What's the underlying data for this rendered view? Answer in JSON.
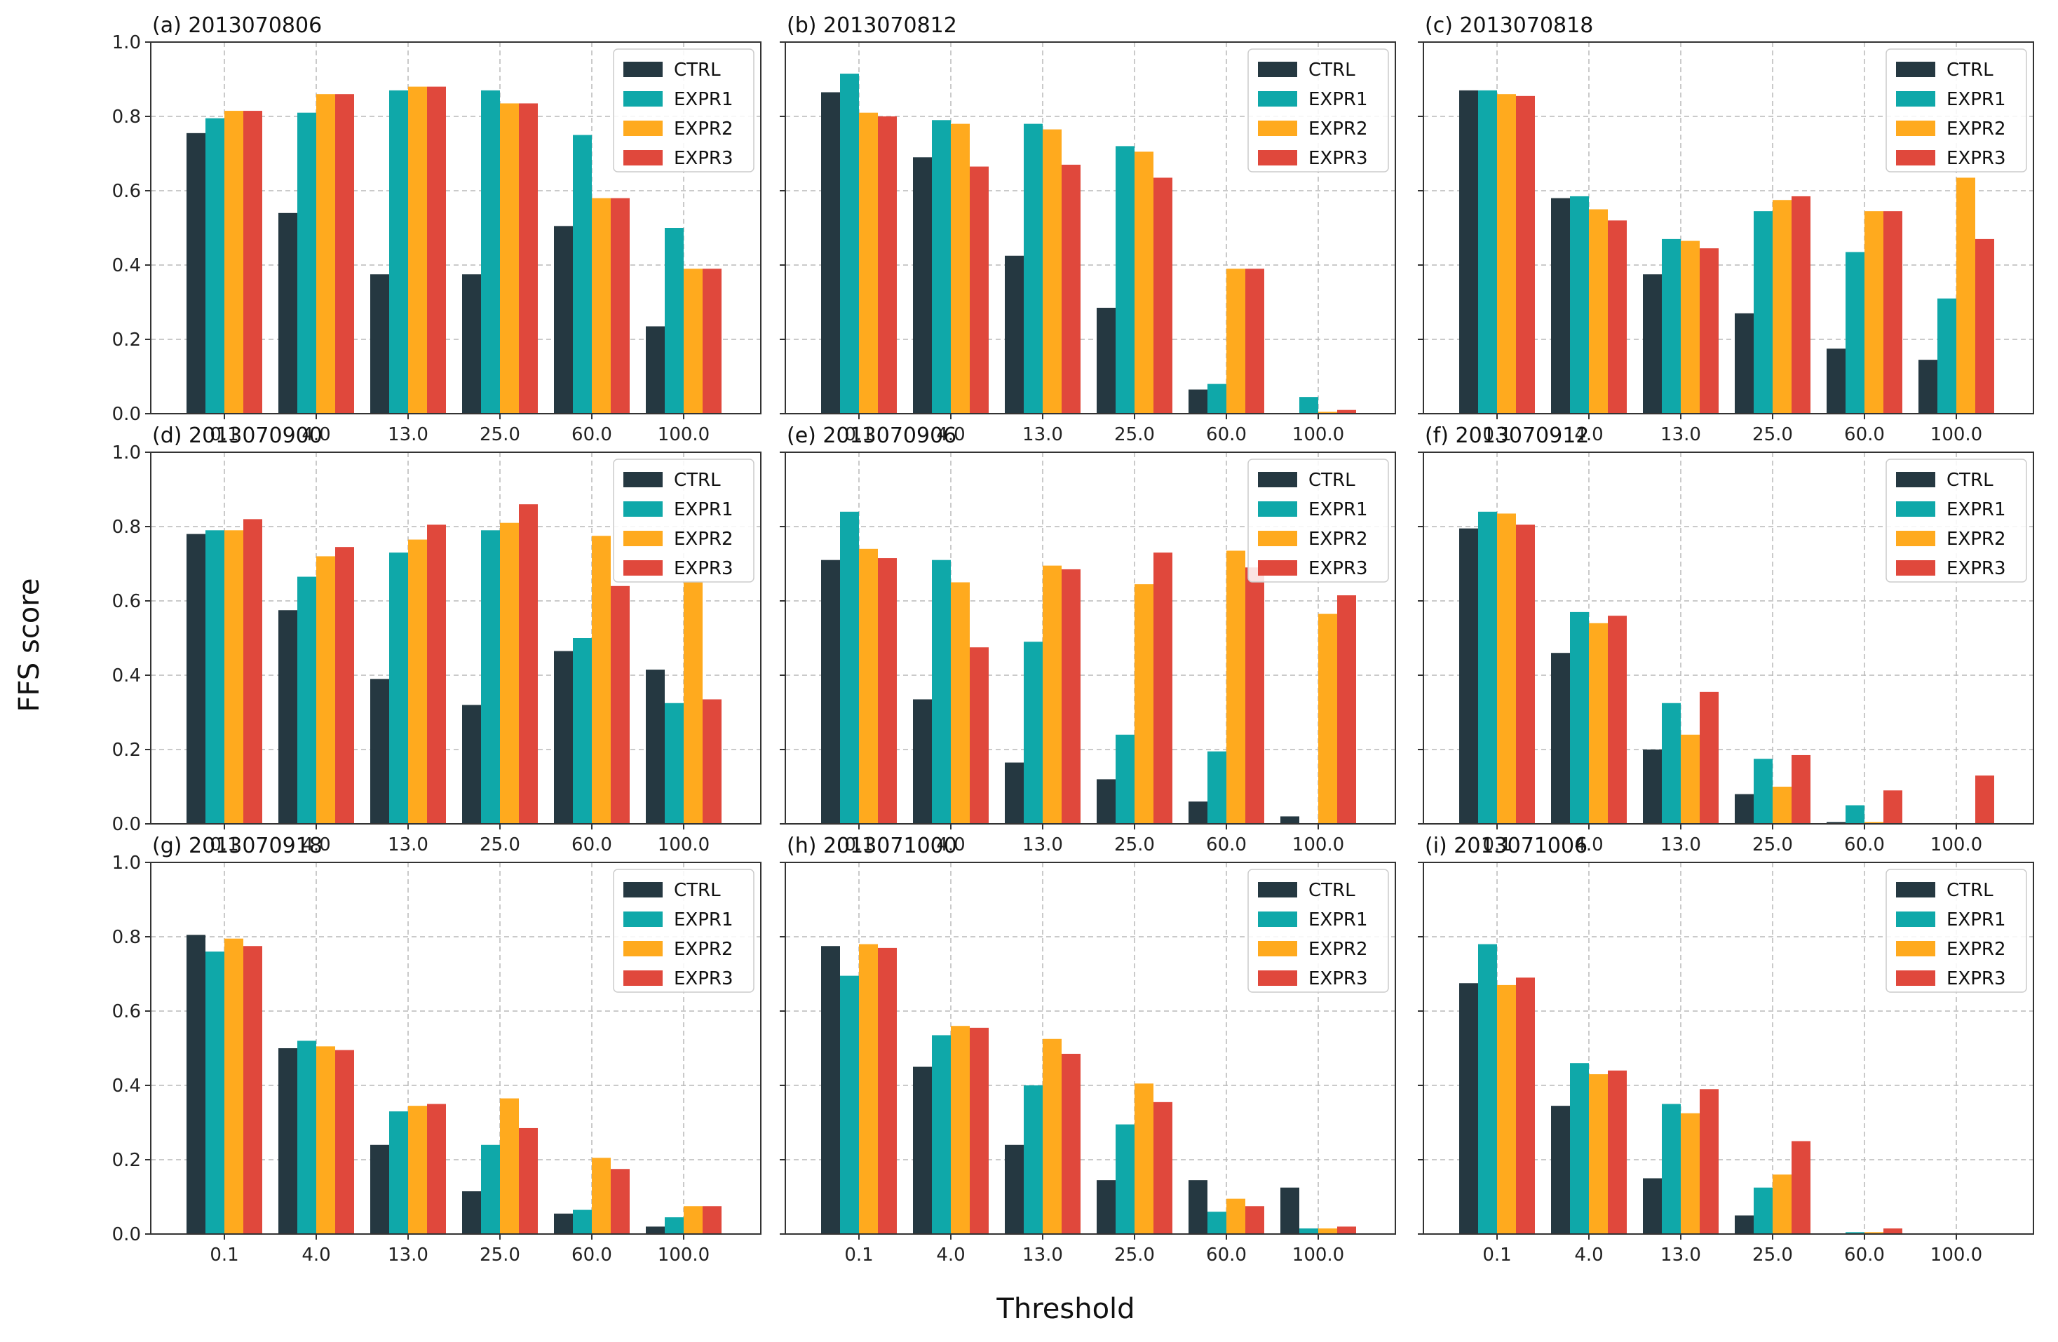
{
  "figure": {
    "ylabel": "FFS score",
    "xlabel": "Threshold",
    "colors": {
      "CTRL": "#253841",
      "EXPR1": "#0FA8A9",
      "EXPR2": "#FFAA1E",
      "EXPR3": "#E0483C"
    }
  },
  "chart_data": [
    {
      "type": "bar",
      "title": "(a) 2013070806",
      "categories": [
        "0.1",
        "4.0",
        "13.0",
        "25.0",
        "60.0",
        "100.0"
      ],
      "ylim": [
        0,
        1.0
      ],
      "yticks": [
        "0.0",
        "0.2",
        "0.4",
        "0.6",
        "0.8",
        "1.0"
      ],
      "grid": true,
      "legend": "top-right",
      "series": [
        {
          "name": "CTRL",
          "values": [
            0.755,
            0.54,
            0.375,
            0.375,
            0.505,
            0.235
          ]
        },
        {
          "name": "EXPR1",
          "values": [
            0.795,
            0.81,
            0.87,
            0.87,
            0.75,
            0.5
          ]
        },
        {
          "name": "EXPR2",
          "values": [
            0.815,
            0.86,
            0.88,
            0.835,
            0.58,
            0.39
          ]
        },
        {
          "name": "EXPR3",
          "values": [
            0.815,
            0.86,
            0.88,
            0.835,
            0.58,
            0.39
          ]
        }
      ]
    },
    {
      "type": "bar",
      "title": "(b) 2013070812",
      "categories": [
        "0.1",
        "4.0",
        "13.0",
        "25.0",
        "60.0",
        "100.0"
      ],
      "ylim": [
        0,
        1.0
      ],
      "yticks": [
        "0.0",
        "0.2",
        "0.4",
        "0.6",
        "0.8",
        "1.0"
      ],
      "grid": true,
      "legend": "top-right",
      "series": [
        {
          "name": "CTRL",
          "values": [
            0.865,
            0.69,
            0.425,
            0.285,
            0.065,
            0.0
          ]
        },
        {
          "name": "EXPR1",
          "values": [
            0.915,
            0.79,
            0.78,
            0.72,
            0.08,
            0.045
          ]
        },
        {
          "name": "EXPR2",
          "values": [
            0.81,
            0.78,
            0.765,
            0.705,
            0.39,
            0.005
          ]
        },
        {
          "name": "EXPR3",
          "values": [
            0.8,
            0.665,
            0.67,
            0.635,
            0.39,
            0.01
          ]
        }
      ]
    },
    {
      "type": "bar",
      "title": "(c) 2013070818",
      "categories": [
        "0.1",
        "4.0",
        "13.0",
        "25.0",
        "60.0",
        "100.0"
      ],
      "ylim": [
        0,
        1.0
      ],
      "yticks": [
        "0.0",
        "0.2",
        "0.4",
        "0.6",
        "0.8",
        "1.0"
      ],
      "grid": true,
      "legend": "top-right",
      "series": [
        {
          "name": "CTRL",
          "values": [
            0.87,
            0.58,
            0.375,
            0.27,
            0.175,
            0.145
          ]
        },
        {
          "name": "EXPR1",
          "values": [
            0.87,
            0.585,
            0.47,
            0.545,
            0.435,
            0.31
          ]
        },
        {
          "name": "EXPR2",
          "values": [
            0.86,
            0.55,
            0.465,
            0.575,
            0.545,
            0.635
          ]
        },
        {
          "name": "EXPR3",
          "values": [
            0.855,
            0.52,
            0.445,
            0.585,
            0.545,
            0.47
          ]
        }
      ]
    },
    {
      "type": "bar",
      "title": "(d) 2013070900",
      "categories": [
        "0.1",
        "4.0",
        "13.0",
        "25.0",
        "60.0",
        "100.0"
      ],
      "ylim": [
        0,
        1.0
      ],
      "yticks": [
        "0.0",
        "0.2",
        "0.4",
        "0.6",
        "0.8",
        "1.0"
      ],
      "grid": true,
      "legend": "top-right",
      "series": [
        {
          "name": "CTRL",
          "values": [
            0.78,
            0.575,
            0.39,
            0.32,
            0.465,
            0.415
          ]
        },
        {
          "name": "EXPR1",
          "values": [
            0.79,
            0.665,
            0.73,
            0.79,
            0.5,
            0.325
          ]
        },
        {
          "name": "EXPR2",
          "values": [
            0.79,
            0.72,
            0.765,
            0.81,
            0.775,
            0.65
          ]
        },
        {
          "name": "EXPR3",
          "values": [
            0.82,
            0.745,
            0.805,
            0.86,
            0.64,
            0.335
          ]
        }
      ]
    },
    {
      "type": "bar",
      "title": "(e) 2013070906",
      "categories": [
        "0.1",
        "4.0",
        "13.0",
        "25.0",
        "60.0",
        "100.0"
      ],
      "ylim": [
        0,
        1.0
      ],
      "yticks": [
        "0.0",
        "0.2",
        "0.4",
        "0.6",
        "0.8",
        "1.0"
      ],
      "grid": true,
      "legend": "top-right",
      "series": [
        {
          "name": "CTRL",
          "values": [
            0.71,
            0.335,
            0.165,
            0.12,
            0.06,
            0.02
          ]
        },
        {
          "name": "EXPR1",
          "values": [
            0.84,
            0.71,
            0.49,
            0.24,
            0.195,
            0.0
          ]
        },
        {
          "name": "EXPR2",
          "values": [
            0.74,
            0.65,
            0.695,
            0.645,
            0.735,
            0.565
          ]
        },
        {
          "name": "EXPR3",
          "values": [
            0.715,
            0.475,
            0.685,
            0.73,
            0.69,
            0.615
          ]
        }
      ]
    },
    {
      "type": "bar",
      "title": "(f) 2013070912",
      "categories": [
        "0.1",
        "4.0",
        "13.0",
        "25.0",
        "60.0",
        "100.0"
      ],
      "ylim": [
        0,
        1.0
      ],
      "yticks": [
        "0.0",
        "0.2",
        "0.4",
        "0.6",
        "0.8",
        "1.0"
      ],
      "grid": true,
      "legend": "top-right",
      "series": [
        {
          "name": "CTRL",
          "values": [
            0.795,
            0.46,
            0.2,
            0.08,
            0.005,
            0.0
          ]
        },
        {
          "name": "EXPR1",
          "values": [
            0.84,
            0.57,
            0.325,
            0.175,
            0.05,
            0.0
          ]
        },
        {
          "name": "EXPR2",
          "values": [
            0.835,
            0.54,
            0.24,
            0.1,
            0.005,
            0.0
          ]
        },
        {
          "name": "EXPR3",
          "values": [
            0.805,
            0.56,
            0.355,
            0.185,
            0.09,
            0.13
          ]
        }
      ]
    },
    {
      "type": "bar",
      "title": "(g) 2013070918",
      "categories": [
        "0.1",
        "4.0",
        "13.0",
        "25.0",
        "60.0",
        "100.0"
      ],
      "ylim": [
        0,
        1.0
      ],
      "yticks": [
        "0.0",
        "0.2",
        "0.4",
        "0.6",
        "0.8",
        "1.0"
      ],
      "grid": true,
      "legend": "top-right",
      "series": [
        {
          "name": "CTRL",
          "values": [
            0.805,
            0.5,
            0.24,
            0.115,
            0.055,
            0.02
          ]
        },
        {
          "name": "EXPR1",
          "values": [
            0.76,
            0.52,
            0.33,
            0.24,
            0.065,
            0.045
          ]
        },
        {
          "name": "EXPR2",
          "values": [
            0.795,
            0.505,
            0.345,
            0.365,
            0.205,
            0.075
          ]
        },
        {
          "name": "EXPR3",
          "values": [
            0.775,
            0.495,
            0.35,
            0.285,
            0.175,
            0.075
          ]
        }
      ]
    },
    {
      "type": "bar",
      "title": "(h) 2013071000",
      "categories": [
        "0.1",
        "4.0",
        "13.0",
        "25.0",
        "60.0",
        "100.0"
      ],
      "ylim": [
        0,
        1.0
      ],
      "yticks": [
        "0.0",
        "0.2",
        "0.4",
        "0.6",
        "0.8",
        "1.0"
      ],
      "grid": true,
      "legend": "top-right",
      "series": [
        {
          "name": "CTRL",
          "values": [
            0.775,
            0.45,
            0.24,
            0.145,
            0.145,
            0.125
          ]
        },
        {
          "name": "EXPR1",
          "values": [
            0.695,
            0.535,
            0.4,
            0.295,
            0.06,
            0.015
          ]
        },
        {
          "name": "EXPR2",
          "values": [
            0.78,
            0.56,
            0.525,
            0.405,
            0.095,
            0.015
          ]
        },
        {
          "name": "EXPR3",
          "values": [
            0.77,
            0.555,
            0.485,
            0.355,
            0.075,
            0.02
          ]
        }
      ]
    },
    {
      "type": "bar",
      "title": "(i) 2013071006",
      "categories": [
        "0.1",
        "4.0",
        "13.0",
        "25.0",
        "60.0",
        "100.0"
      ],
      "ylim": [
        0,
        1.0
      ],
      "yticks": [
        "0.0",
        "0.2",
        "0.4",
        "0.6",
        "0.8",
        "1.0"
      ],
      "grid": true,
      "legend": "top-right",
      "series": [
        {
          "name": "CTRL",
          "values": [
            0.675,
            0.345,
            0.15,
            0.05,
            0.0,
            0.0
          ]
        },
        {
          "name": "EXPR1",
          "values": [
            0.78,
            0.46,
            0.35,
            0.125,
            0.005,
            0.0
          ]
        },
        {
          "name": "EXPR2",
          "values": [
            0.67,
            0.43,
            0.325,
            0.16,
            0.005,
            0.0
          ]
        },
        {
          "name": "EXPR3",
          "values": [
            0.69,
            0.44,
            0.39,
            0.25,
            0.015,
            0.0
          ]
        }
      ]
    }
  ]
}
